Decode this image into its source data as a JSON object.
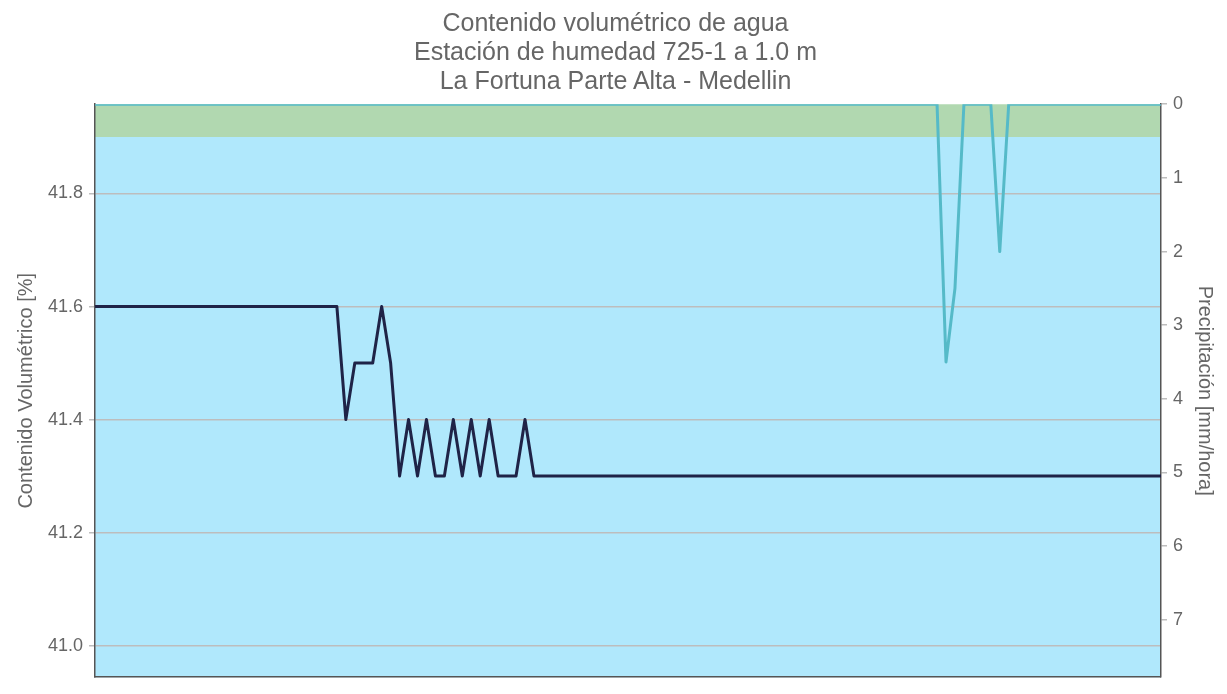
{
  "chart_data": {
    "type": "line",
    "title": "Contenido volumétrico de agua\nEstación de humedad 725-1 a 1.0 m\nLa Fortuna Parte Alta - Medellin",
    "ylabel": "Contenido Volumétrico [%]",
    "y2label": "Precipitación [mm/hora]",
    "categories": [
      null,
      null,
      null,
      null,
      null,
      null,
      null,
      null,
      null,
      null,
      null,
      null,
      null,
      null,
      null,
      null,
      null,
      null,
      null,
      null,
      null,
      null,
      null,
      null,
      null,
      null,
      null,
      null,
      null,
      null,
      null,
      null,
      null,
      null,
      null,
      null,
      null,
      null,
      null,
      null,
      null,
      null,
      null,
      null,
      null,
      null,
      null,
      null,
      null,
      null,
      null,
      null,
      null,
      null,
      null,
      null,
      null,
      null,
      null,
      null,
      null,
      null,
      null,
      null,
      null,
      null,
      null,
      null,
      null,
      null,
      null,
      null,
      null,
      null,
      null,
      null,
      null,
      null,
      null,
      null,
      null,
      null,
      null,
      null,
      null,
      null,
      null,
      null,
      null,
      null,
      null,
      null,
      null,
      null,
      null,
      null,
      null,
      null,
      null,
      null,
      null,
      null,
      null,
      null,
      null,
      null,
      null,
      null,
      null,
      null,
      null,
      null,
      null,
      null,
      null,
      null,
      null,
      null,
      null,
      null
    ],
    "series": [
      {
        "color": "#1f2347",
        "values": [
          41.6,
          41.6,
          41.6,
          41.6,
          41.6,
          41.6,
          41.6,
          41.6,
          41.6,
          41.6,
          41.6,
          41.6,
          41.6,
          41.6,
          41.6,
          41.6,
          41.6,
          41.6,
          41.6,
          41.6,
          41.6,
          41.6,
          41.6,
          41.6,
          41.6,
          41.6,
          41.6,
          41.6,
          41.4,
          41.5,
          41.5,
          41.5,
          41.6,
          41.5,
          41.3,
          41.4,
          41.3,
          41.4,
          41.3,
          41.3,
          41.4,
          41.3,
          41.4,
          41.3,
          41.4,
          41.3,
          41.3,
          41.3,
          41.4,
          41.3,
          41.3,
          41.3,
          41.3,
          41.3,
          41.3,
          41.3,
          41.3,
          41.3,
          41.3,
          41.3,
          41.3,
          41.3,
          41.3,
          41.3,
          41.3,
          41.3,
          41.3,
          41.3,
          41.3,
          41.3,
          41.3,
          41.3,
          41.3,
          41.3,
          41.3,
          41.3,
          41.3,
          41.3,
          41.3,
          41.3,
          41.3,
          41.3,
          41.3,
          41.3,
          41.3,
          41.3,
          41.3,
          41.3,
          41.3,
          41.3,
          41.3,
          41.3,
          41.3,
          41.3,
          41.3,
          41.3,
          41.3,
          41.3,
          41.3,
          41.3,
          41.3,
          41.3,
          41.3,
          41.3,
          41.3,
          41.3,
          41.3,
          41.3,
          41.3,
          41.3,
          41.3,
          41.3,
          41.3,
          41.3,
          41.3,
          41.3,
          41.3,
          41.3,
          41.3,
          41.3
        ]
      },
      {
        "color": "#55bac8",
        "axis": "y2",
        "values": [
          0,
          0,
          0,
          0,
          0,
          0,
          0,
          0,
          0,
          0,
          0,
          0,
          0,
          0,
          0,
          0,
          0,
          0,
          0,
          0,
          0,
          0,
          0,
          0,
          0,
          0,
          0,
          0,
          0,
          0,
          0,
          0,
          0,
          0,
          0,
          0,
          0,
          0,
          0,
          0,
          0,
          0,
          0,
          0,
          0,
          0,
          0,
          0,
          0,
          0,
          0,
          0,
          0,
          0,
          0,
          0,
          0,
          0,
          0,
          0,
          0,
          0,
          0,
          0,
          0,
          0,
          0,
          0,
          0,
          0,
          0,
          0,
          0,
          0,
          0,
          0,
          0,
          0,
          0,
          0,
          0,
          0,
          0,
          0,
          0,
          0,
          0,
          0,
          0,
          0,
          0,
          0,
          0,
          0,
          0,
          3.5,
          2.5,
          0,
          0,
          0,
          0,
          2.0,
          0,
          0,
          0,
          0,
          0,
          0,
          0,
          0,
          0,
          0,
          0,
          0,
          0,
          0,
          0,
          0,
          0,
          0
        ]
      }
    ],
    "ylim": [
      40.944,
      41.958
    ],
    "yticks": [
      {
        "value": 41.0,
        "label": "41.0"
      },
      {
        "value": 41.2,
        "label": "41.2"
      },
      {
        "value": 41.4,
        "label": "41.4"
      },
      {
        "value": 41.6,
        "label": "41.6"
      },
      {
        "value": 41.8,
        "label": "41.8"
      }
    ],
    "y2lim": [
      7.78,
      0
    ],
    "y2ticks": [
      0,
      1,
      2,
      3,
      4,
      5,
      6,
      7
    ],
    "bands": [
      {
        "axis": "y",
        "from": 40.944,
        "to": 41.9,
        "color": "#b0e8fc"
      },
      {
        "axis": "y",
        "from": 41.9,
        "to": 41.958,
        "color": "#b1d8b0"
      }
    ],
    "grid": "y",
    "legend": false,
    "tick_labels": "y",
    "marker": "none",
    "line_style": "solid"
  }
}
